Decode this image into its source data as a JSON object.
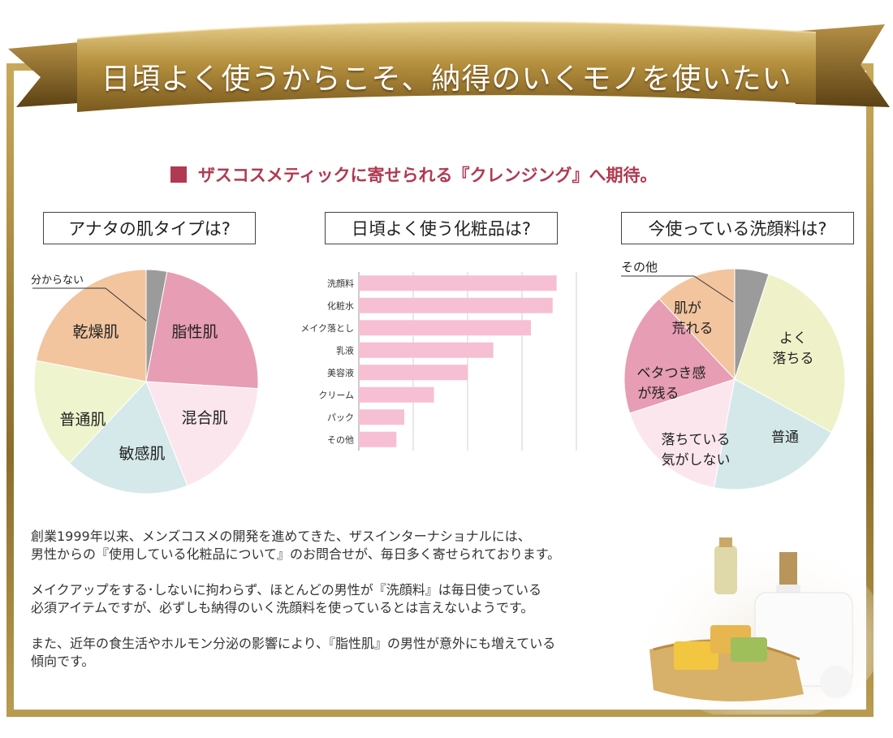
{
  "banner": {
    "title": "日頃よく使うからこそ、納得のいくモノを使いたい"
  },
  "section": {
    "heading": "ザスコスメティックに寄せられる『クレンジング』へ期待。"
  },
  "colors": {
    "gold": "#b8984b",
    "heading": "#b03a52",
    "bar": "#f7bfd3"
  },
  "chart_data": [
    {
      "type": "pie",
      "title": "アナタの肌タイプは?",
      "labels": [
        "分からない",
        "脂性肌",
        "混合肌",
        "敏感肌",
        "普通肌",
        "乾燥肌"
      ],
      "values": [
        3,
        23,
        18,
        18,
        16,
        22
      ],
      "colors": [
        "#9b9b9b",
        "#e79db3",
        "#fce6ee",
        "#d5e8ea",
        "#eef4cd",
        "#f2c59e"
      ]
    },
    {
      "type": "bar",
      "title": "日頃よく使う化粧品は?",
      "categories": [
        "洗顔料",
        "化粧水",
        "メイク落とし",
        "乳液",
        "美容液",
        "クリーム",
        "パック",
        "その他"
      ],
      "values": [
        100,
        98,
        87,
        68,
        55,
        38,
        23,
        19
      ],
      "xlim": [
        0,
        110
      ],
      "grid": true
    },
    {
      "type": "pie",
      "title": "今使っている洗顔料は?",
      "labels": [
        "その他",
        "よく落ちる",
        "普通",
        "落ちている気がしない",
        "ベタつき感が残る",
        "肌が荒れる"
      ],
      "values": [
        5,
        28,
        20,
        17,
        18,
        12
      ],
      "colors": [
        "#9b9b9b",
        "#eff2c9",
        "#d4e8ea",
        "#fce6ee",
        "#e79db3",
        "#f2c59e"
      ]
    }
  ],
  "pie1_labels": {
    "dont_know": "分からない",
    "oily": "脂性肌",
    "combo": "混合肌",
    "sensitive": "敏感肌",
    "normal": "普通肌",
    "dry": "乾燥肌"
  },
  "pie2_labels": {
    "other": "その他",
    "good_1": "よく",
    "good_2": "落ちる",
    "normal": "普通",
    "notclean_1": "落ちている",
    "notclean_2": "気がしない",
    "sticky_1": "ベタつき感",
    "sticky_2": "が残る",
    "rough_1": "肌が",
    "rough_2": "荒れる"
  },
  "body": {
    "p1_line1": "創業1999年以来、メンズコスメの開発を進めてきた、ザスインターナショナルには、",
    "p1_line2": "男性からの『使用している化粧品について』のお問合せが、毎日多く寄せられております。",
    "p2_line1": "メイクアップをする･しないに拘わらず、ほとんどの男性が『洗顔料』は毎日使っている",
    "p2_line2": "必須アイテムですが、必ずしも納得のいく洗顔料を使っているとは言えないようです。",
    "p3_line1": "また、近年の食生活やホルモン分泌の影響により、『脂性肌』の男性が意外にも増えている",
    "p3_line2": "傾向です。"
  }
}
